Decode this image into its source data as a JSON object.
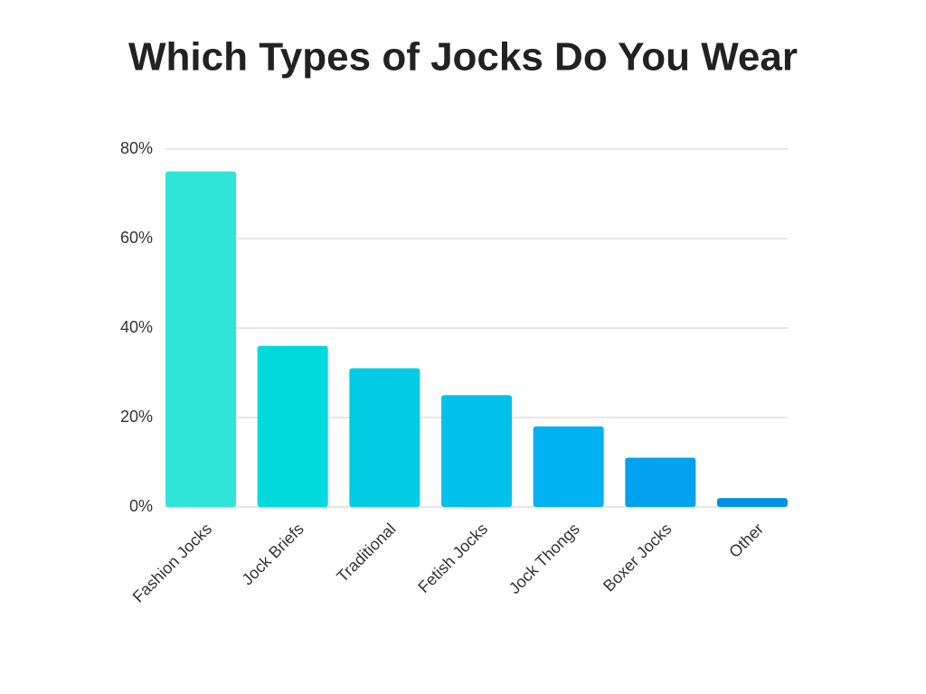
{
  "chart_data": {
    "type": "bar",
    "title": "Which Types of Jocks Do You Wear",
    "categories": [
      "Fashion Jocks",
      "Jock Briefs",
      "Traditional",
      "Fetish Jocks",
      "Jock Thongs",
      "Boxer Jocks",
      "Other"
    ],
    "values": [
      75,
      36,
      31,
      25,
      18,
      11,
      2
    ],
    "colors": [
      "#2ee5d8",
      "#00dadd",
      "#00cde4",
      "#00c1ec",
      "#00b2f1",
      "#00a2ee",
      "#0091e6"
    ],
    "ylim": [
      0,
      80
    ],
    "yticks": [
      {
        "value": 0,
        "label": "0%"
      },
      {
        "value": 20,
        "label": "20%"
      },
      {
        "value": 40,
        "label": "40%"
      },
      {
        "value": 60,
        "label": "60%"
      },
      {
        "value": 80,
        "label": "80%"
      }
    ],
    "grid": true
  }
}
